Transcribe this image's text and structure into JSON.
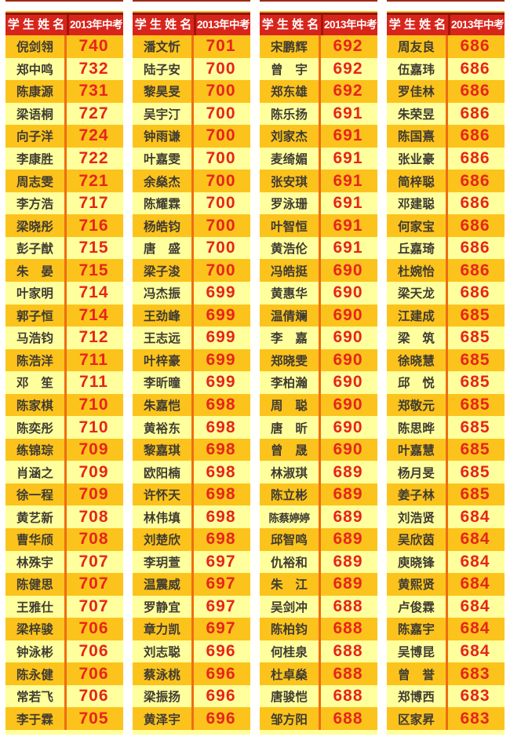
{
  "colors": {
    "page-bg": "#FFFFFF",
    "header-bg": "#D8251C",
    "header-text": "#FFFFFF",
    "header-top-dark": "#8C1508",
    "gold-line": "#F3BE2B",
    "header-divider": "#A51309",
    "row-gold": "#FCC31C",
    "row-pale": "#FFFF9D",
    "col-divider": "#EE6D12",
    "score-text": "#E6251B",
    "name-text": "#3F3B33",
    "sliver": "#A02813"
  },
  "table": {
    "header": {
      "name_label": "学 生 姓 名",
      "score_label": "2013年中考"
    },
    "columns": [
      {
        "rows": [
          {
            "name": "倪剑翎",
            "score": "740"
          },
          {
            "name": "郑中鸣",
            "score": "732"
          },
          {
            "name": "陈康源",
            "score": "731"
          },
          {
            "name": "梁语桐",
            "score": "727"
          },
          {
            "name": "向子洋",
            "score": "724"
          },
          {
            "name": "李康胜",
            "score": "722"
          },
          {
            "name": "周志雯",
            "score": "721"
          },
          {
            "name": "李方浩",
            "score": "717"
          },
          {
            "name": "梁晓彤",
            "score": "716"
          },
          {
            "name": "彭子猷",
            "score": "715"
          },
          {
            "name": "朱　晏",
            "score": "715"
          },
          {
            "name": "叶家明",
            "score": "714"
          },
          {
            "name": "郭子恒",
            "score": "714"
          },
          {
            "name": "马浩钧",
            "score": "712"
          },
          {
            "name": "陈浩洋",
            "score": "711"
          },
          {
            "name": "邓　笙",
            "score": "711"
          },
          {
            "name": "陈家棋",
            "score": "710"
          },
          {
            "name": "陈奕彤",
            "score": "710"
          },
          {
            "name": "练锦琮",
            "score": "709"
          },
          {
            "name": "肖涵之",
            "score": "709"
          },
          {
            "name": "徐一程",
            "score": "709"
          },
          {
            "name": "黄艺新",
            "score": "708"
          },
          {
            "name": "曹华颀",
            "score": "708"
          },
          {
            "name": "林殊宇",
            "score": "707"
          },
          {
            "name": "陈健思",
            "score": "707"
          },
          {
            "name": "王雅仕",
            "score": "707"
          },
          {
            "name": "梁梓骏",
            "score": "706"
          },
          {
            "name": "钟泳彬",
            "score": "706"
          },
          {
            "name": "陈永健",
            "score": "706"
          },
          {
            "name": "常若飞",
            "score": "706"
          },
          {
            "name": "李于霖",
            "score": "705"
          }
        ]
      },
      {
        "rows": [
          {
            "name": "潘文忻",
            "score": "701"
          },
          {
            "name": "陆子安",
            "score": "700"
          },
          {
            "name": "黎昊旻",
            "score": "700"
          },
          {
            "name": "吴宇汀",
            "score": "700"
          },
          {
            "name": "钟雨谦",
            "score": "700"
          },
          {
            "name": "叶嘉雯",
            "score": "700"
          },
          {
            "name": "余燊杰",
            "score": "700"
          },
          {
            "name": "陈耀霖",
            "score": "700"
          },
          {
            "name": "杨皓钧",
            "score": "700"
          },
          {
            "name": "唐　盛",
            "score": "700"
          },
          {
            "name": "梁子浚",
            "score": "700"
          },
          {
            "name": "冯杰振",
            "score": "699"
          },
          {
            "name": "王劲峰",
            "score": "699"
          },
          {
            "name": "王志远",
            "score": "699"
          },
          {
            "name": "叶梓豪",
            "score": "699"
          },
          {
            "name": "李昕曈",
            "score": "699"
          },
          {
            "name": "朱嘉恺",
            "score": "698"
          },
          {
            "name": "黄裕东",
            "score": "698"
          },
          {
            "name": "黎嘉琪",
            "score": "698"
          },
          {
            "name": "欧阳楠",
            "score": "698"
          },
          {
            "name": "许怀天",
            "score": "698"
          },
          {
            "name": "林伟填",
            "score": "698"
          },
          {
            "name": "刘楚欣",
            "score": "698"
          },
          {
            "name": "李玥萱",
            "score": "697"
          },
          {
            "name": "温震威",
            "score": "697"
          },
          {
            "name": "罗静宜",
            "score": "697"
          },
          {
            "name": "章力凯",
            "score": "697"
          },
          {
            "name": "刘志聪",
            "score": "696"
          },
          {
            "name": "蔡泳桃",
            "score": "696"
          },
          {
            "name": "梁振扬",
            "score": "696"
          },
          {
            "name": "黄泽宇",
            "score": "696"
          }
        ]
      },
      {
        "rows": [
          {
            "name": "宋鹏辉",
            "score": "692"
          },
          {
            "name": "曾　宇",
            "score": "692"
          },
          {
            "name": "郑东雄",
            "score": "692"
          },
          {
            "name": "陈乐扬",
            "score": "691"
          },
          {
            "name": "刘家杰",
            "score": "691"
          },
          {
            "name": "麦绮媚",
            "score": "691"
          },
          {
            "name": "张安琪",
            "score": "691"
          },
          {
            "name": "罗泳珊",
            "score": "691"
          },
          {
            "name": "叶智恒",
            "score": "691"
          },
          {
            "name": "黄浩伦",
            "score": "691"
          },
          {
            "name": "冯皓挺",
            "score": "690"
          },
          {
            "name": "黄惠华",
            "score": "690"
          },
          {
            "name": "温倩斓",
            "score": "690"
          },
          {
            "name": "李　嘉",
            "score": "690"
          },
          {
            "name": "郑晓雯",
            "score": "690"
          },
          {
            "name": "李柏瀚",
            "score": "690"
          },
          {
            "name": "周　聪",
            "score": "690"
          },
          {
            "name": "唐　昕",
            "score": "690"
          },
          {
            "name": "曾　晟",
            "score": "690"
          },
          {
            "name": "林淑琪",
            "score": "689"
          },
          {
            "name": "陈立彬",
            "score": "689"
          },
          {
            "name": "陈蔡婷婷",
            "score": "689"
          },
          {
            "name": "邱智鸣",
            "score": "689"
          },
          {
            "name": "仇裕和",
            "score": "689"
          },
          {
            "name": "朱　江",
            "score": "689"
          },
          {
            "name": "吴剑冲",
            "score": "688"
          },
          {
            "name": "陈柏钧",
            "score": "688"
          },
          {
            "name": "何桂泉",
            "score": "688"
          },
          {
            "name": "杜卓燊",
            "score": "688"
          },
          {
            "name": "唐骏恺",
            "score": "688"
          },
          {
            "name": "邹方阳",
            "score": "688"
          }
        ]
      },
      {
        "rows": [
          {
            "name": "周友良",
            "score": "686"
          },
          {
            "name": "伍嘉玮",
            "score": "686"
          },
          {
            "name": "罗佳林",
            "score": "686"
          },
          {
            "name": "朱荣昱",
            "score": "686"
          },
          {
            "name": "陈国熹",
            "score": "686"
          },
          {
            "name": "张业豪",
            "score": "686"
          },
          {
            "name": "简梓聪",
            "score": "686"
          },
          {
            "name": "邓建聪",
            "score": "686"
          },
          {
            "name": "何家宝",
            "score": "686"
          },
          {
            "name": "丘嘉琦",
            "score": "686"
          },
          {
            "name": "杜婉怡",
            "score": "686"
          },
          {
            "name": "梁天龙",
            "score": "686"
          },
          {
            "name": "江建成",
            "score": "685"
          },
          {
            "name": "梁　筑",
            "score": "685"
          },
          {
            "name": "徐晓慧",
            "score": "685"
          },
          {
            "name": "邱　悦",
            "score": "685"
          },
          {
            "name": "郑敬元",
            "score": "685"
          },
          {
            "name": "陈思晔",
            "score": "685"
          },
          {
            "name": "叶嘉慧",
            "score": "685"
          },
          {
            "name": "杨月旻",
            "score": "685"
          },
          {
            "name": "姜子林",
            "score": "685"
          },
          {
            "name": "刘浩贤",
            "score": "684"
          },
          {
            "name": "吴欣茵",
            "score": "684"
          },
          {
            "name": "庾晓锋",
            "score": "684"
          },
          {
            "name": "黄熙贤",
            "score": "684"
          },
          {
            "name": "卢俊霖",
            "score": "684"
          },
          {
            "name": "陈嘉宇",
            "score": "684"
          },
          {
            "name": "吴博昆",
            "score": "684"
          },
          {
            "name": "曾　誉",
            "score": "683"
          },
          {
            "name": "郑博西",
            "score": "683"
          },
          {
            "name": "区家昇",
            "score": "683"
          }
        ]
      }
    ]
  }
}
